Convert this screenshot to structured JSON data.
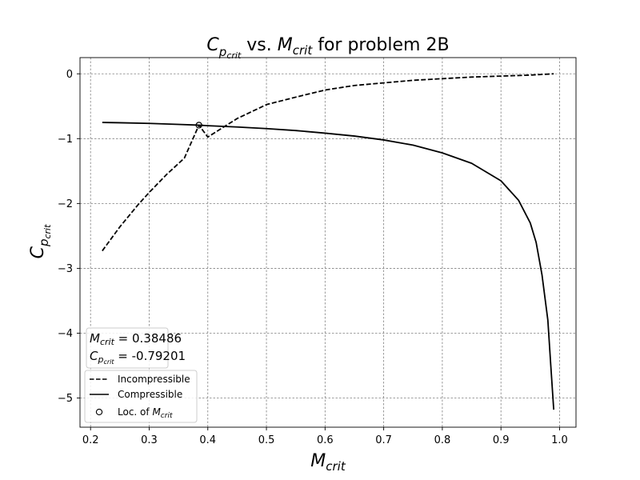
{
  "chart_data": {
    "type": "line",
    "title": {
      "lead_symbol": "C",
      "lead_subscript": "p",
      "lead_subsubscript": "crit",
      "middle": " vs. ",
      "mid_symbol": "M",
      "mid_subscript": "crit",
      "tail": " for problem 2B"
    },
    "xlabel": {
      "symbol": "M",
      "subscript": "crit"
    },
    "ylabel": {
      "symbol": "C",
      "subscript": "p",
      "subsubscript": "crit"
    },
    "xlim": [
      0.182,
      1.028
    ],
    "ylim": [
      -5.45,
      0.25
    ],
    "xticks": [
      0.2,
      0.3,
      0.4,
      0.5,
      0.6,
      0.7,
      0.8,
      0.9,
      1.0
    ],
    "xtick_labels": [
      "0.2",
      "0.3",
      "0.4",
      "0.5",
      "0.6",
      "0.7",
      "0.8",
      "0.9",
      "1.0"
    ],
    "yticks": [
      0,
      -1,
      -2,
      -3,
      -4,
      -5
    ],
    "ytick_labels": [
      "0",
      "−1",
      "−2",
      "−3",
      "−4",
      "−5"
    ],
    "grid": true,
    "series": [
      {
        "name": "Incompressible",
        "style": "dashed",
        "color": "#000000",
        "x": [
          0.22,
          0.25,
          0.28,
          0.3,
          0.33,
          0.36,
          0.38486,
          0.4,
          0.45,
          0.5,
          0.55,
          0.6,
          0.65,
          0.7,
          0.75,
          0.8,
          0.85,
          0.9,
          0.95,
          0.99
        ],
        "y": [
          -2.73,
          -2.36,
          -2.03,
          -1.83,
          -1.55,
          -1.3,
          -0.79201,
          -0.975,
          -0.69,
          -0.475,
          -0.36,
          -0.25,
          -0.18,
          -0.14,
          -0.1,
          -0.075,
          -0.05,
          -0.035,
          -0.02,
          0.0
        ]
      },
      {
        "name": "Compressible",
        "style": "solid",
        "color": "#000000",
        "x": [
          0.22,
          0.25,
          0.3,
          0.35,
          0.38486,
          0.4,
          0.45,
          0.5,
          0.55,
          0.6,
          0.65,
          0.7,
          0.75,
          0.8,
          0.85,
          0.9,
          0.93,
          0.95,
          0.96,
          0.97,
          0.98,
          0.985,
          0.99
        ],
        "y": [
          -0.75,
          -0.755,
          -0.765,
          -0.78,
          -0.79201,
          -0.8,
          -0.82,
          -0.845,
          -0.875,
          -0.915,
          -0.96,
          -1.02,
          -1.1,
          -1.22,
          -1.38,
          -1.65,
          -1.95,
          -2.3,
          -2.6,
          -3.1,
          -3.8,
          -4.5,
          -5.18
        ]
      }
    ],
    "marker": {
      "name_prefix": "Loc. of ",
      "name_symbol": "M",
      "name_subscript": "crit",
      "x": 0.38486,
      "y": -0.79201
    },
    "annotation": {
      "m_symbol": "M",
      "m_subscript": "crit",
      "m_value": " = 0.38486",
      "c_symbol": "C",
      "c_subscript": "p",
      "c_subsubscript": "crit",
      "c_value": " = -0.79201"
    },
    "legend_placement": "lower-left",
    "annotation_placement": "lower-left"
  }
}
